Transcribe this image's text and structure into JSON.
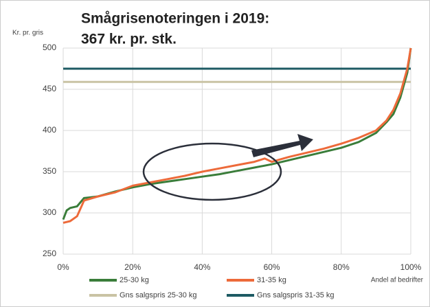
{
  "chart_data": {
    "type": "line",
    "title": [
      "Smågrisenoteringen  i 2019:",
      "367 kr. pr. stk."
    ],
    "y_label": "Kr. pr. gris",
    "x_label": "Andel af bedrifter",
    "xlim": [
      0,
      100
    ],
    "xticks": [
      {
        "value": 0,
        "label": "0%"
      },
      {
        "value": 20,
        "label": "20%"
      },
      {
        "value": 40,
        "label": "40%"
      },
      {
        "value": 60,
        "label": "60%"
      },
      {
        "value": 80,
        "label": "80%"
      },
      {
        "value": 100,
        "label": "100%"
      }
    ],
    "ylim": [
      250,
      500
    ],
    "yticks": [
      250,
      300,
      350,
      400,
      450,
      500
    ],
    "grid": true,
    "series": [
      {
        "name": "25-30 kg",
        "color": "#3a7d3a",
        "x": [
          0,
          1,
          2,
          4,
          6,
          10,
          15,
          20,
          25,
          30,
          35,
          40,
          45,
          50,
          55,
          60,
          65,
          70,
          75,
          80,
          85,
          90,
          93,
          95,
          97,
          98,
          99,
          100
        ],
        "values": [
          292,
          303,
          306,
          308,
          318,
          320,
          326,
          331,
          335,
          338,
          341,
          344,
          347,
          351,
          355,
          359,
          364,
          369,
          374,
          379,
          386,
          397,
          410,
          420,
          440,
          455,
          470,
          500
        ]
      },
      {
        "name": "31-35 kg",
        "color": "#ed6a3a",
        "x": [
          0,
          2,
          4,
          6,
          10,
          15,
          20,
          25,
          30,
          35,
          40,
          45,
          50,
          55,
          58,
          60,
          65,
          70,
          75,
          80,
          85,
          90,
          93,
          95,
          97,
          98,
          99,
          100
        ],
        "values": [
          288,
          290,
          296,
          315,
          320,
          325,
          333,
          337,
          341,
          345,
          350,
          354,
          358,
          362,
          366,
          362,
          368,
          373,
          378,
          384,
          391,
          400,
          412,
          425,
          445,
          460,
          475,
          500
        ]
      },
      {
        "name": "Gns salgspris 25-30 kg",
        "color": "#c9c3a4",
        "x": [
          0,
          100
        ],
        "values": [
          459,
          459
        ]
      },
      {
        "name": "Gns salgspris 31-35 kg",
        "color": "#1d5a63",
        "x": [
          0,
          100
        ],
        "values": [
          475,
          475
        ]
      }
    ]
  }
}
